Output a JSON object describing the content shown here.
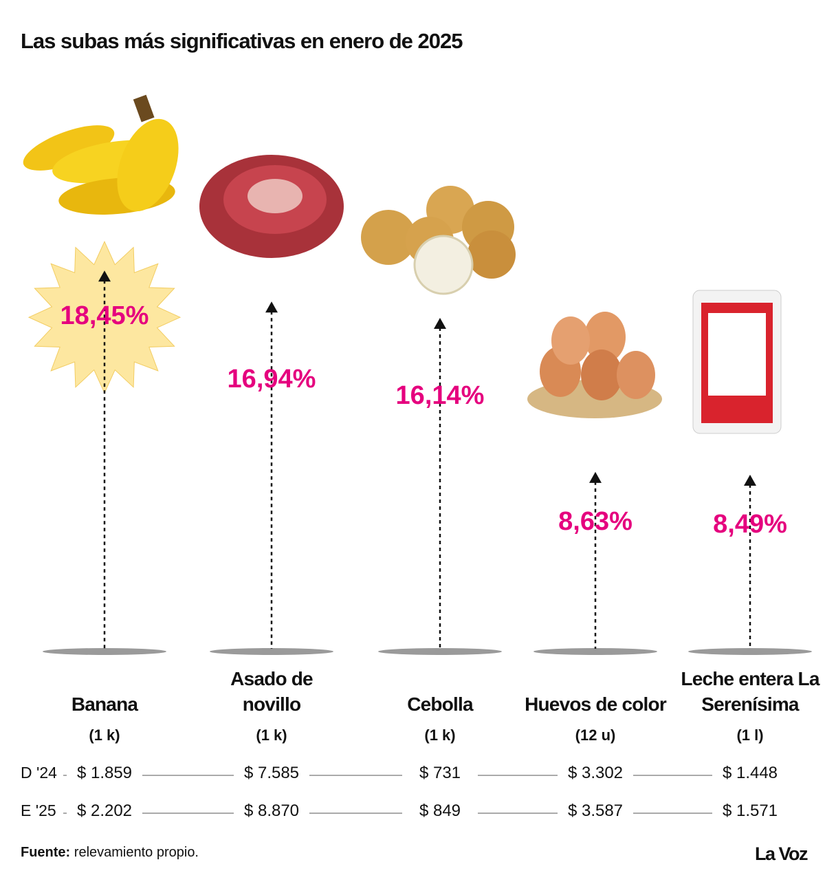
{
  "title": "Las subas más significativas en enero de 2025",
  "chart_data": {
    "type": "arrow",
    "categories": [
      "Banana",
      "Asado de novillo",
      "Cebolla",
      "Huevos de color",
      "Leche entera La Serenísima"
    ],
    "units": [
      "(1 k)",
      "(1 k)",
      "(1 k)",
      "(12 u)",
      "(1 l)"
    ],
    "values": [
      18.45,
      16.94,
      16.14,
      8.63,
      8.49
    ],
    "value_labels": [
      "18,45%",
      "16,94%",
      "16,14%",
      "8,63%",
      "8,49%"
    ],
    "color": "#e5007e"
  },
  "price_table": {
    "rows": [
      {
        "label": "D '24",
        "values": [
          "$ 1.859",
          "$ 7.585",
          "$ 731",
          "$ 3.302",
          "$ 1.448"
        ]
      },
      {
        "label": "E '25",
        "values": [
          "$ 2.202",
          "$ 8.870",
          "$ 849",
          "$ 3.587",
          "$ 1.571"
        ]
      }
    ]
  },
  "footer": {
    "source_label": "Fuente:",
    "source_text": "relevamiento propio.",
    "brand": "La Voz"
  }
}
